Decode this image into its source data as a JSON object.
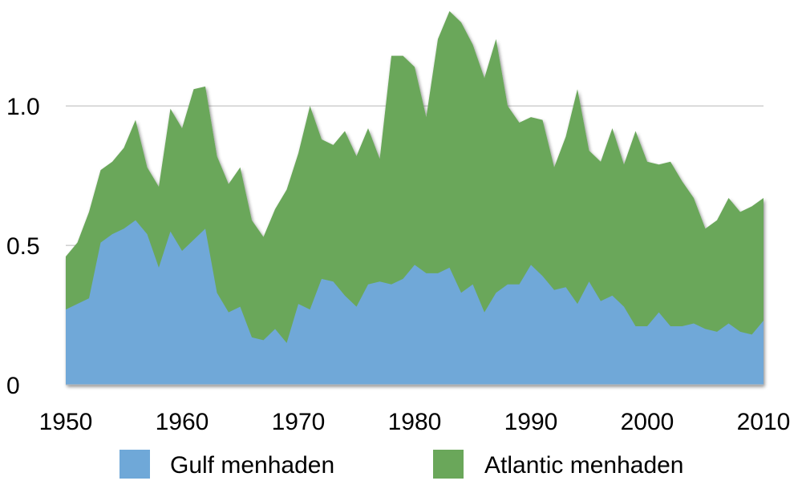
{
  "chart_data": {
    "type": "area",
    "stacked": true,
    "title": "",
    "xlabel": "",
    "ylabel": "",
    "xlim": [
      1950,
      2010
    ],
    "ylim": [
      0,
      1.38
    ],
    "x_ticks": [
      "1950",
      "1960",
      "1970",
      "1980",
      "1990",
      "2000",
      "2010"
    ],
    "y_ticks": [
      {
        "value": 0,
        "label": "0"
      },
      {
        "value": 0.5,
        "label": "0.5"
      },
      {
        "value": 1.0,
        "label": "1.0"
      }
    ],
    "grid": "horizontal",
    "legend": "bottom",
    "x": [
      1950,
      1951,
      1952,
      1953,
      1954,
      1955,
      1956,
      1957,
      1958,
      1959,
      1960,
      1961,
      1962,
      1963,
      1964,
      1965,
      1966,
      1967,
      1968,
      1969,
      1970,
      1971,
      1972,
      1973,
      1974,
      1975,
      1976,
      1977,
      1978,
      1979,
      1980,
      1981,
      1982,
      1983,
      1984,
      1985,
      1986,
      1987,
      1988,
      1989,
      1990,
      1991,
      1992,
      1993,
      1994,
      1995,
      1996,
      1997,
      1998,
      1999,
      2000,
      2001,
      2002,
      2003,
      2004,
      2005,
      2006,
      2007,
      2008,
      2009,
      2010
    ],
    "series": [
      {
        "name": "Gulf menhaden",
        "color": "#6fa8d8",
        "values": [
          0.27,
          0.29,
          0.31,
          0.51,
          0.54,
          0.56,
          0.59,
          0.54,
          0.42,
          0.55,
          0.48,
          0.52,
          0.56,
          0.33,
          0.26,
          0.28,
          0.17,
          0.16,
          0.2,
          0.15,
          0.29,
          0.27,
          0.38,
          0.37,
          0.32,
          0.28,
          0.36,
          0.37,
          0.36,
          0.38,
          0.43,
          0.4,
          0.4,
          0.42,
          0.33,
          0.36,
          0.26,
          0.33,
          0.36,
          0.36,
          0.43,
          0.39,
          0.34,
          0.35,
          0.29,
          0.37,
          0.3,
          0.32,
          0.28,
          0.21,
          0.21,
          0.26,
          0.21,
          0.21,
          0.22,
          0.2,
          0.19,
          0.22,
          0.19,
          0.18,
          0.23
        ]
      },
      {
        "name": "Atlantic menhaden",
        "color": "#6aa75a",
        "values": [
          0.19,
          0.22,
          0.31,
          0.26,
          0.26,
          0.29,
          0.36,
          0.24,
          0.29,
          0.44,
          0.44,
          0.54,
          0.51,
          0.49,
          0.46,
          0.5,
          0.42,
          0.37,
          0.43,
          0.55,
          0.54,
          0.73,
          0.5,
          0.49,
          0.59,
          0.54,
          0.56,
          0.44,
          0.82,
          0.8,
          0.71,
          0.56,
          0.84,
          0.92,
          0.97,
          0.86,
          0.84,
          0.91,
          0.64,
          0.58,
          0.53,
          0.56,
          0.44,
          0.54,
          0.77,
          0.47,
          0.5,
          0.6,
          0.51,
          0.7,
          0.59,
          0.53,
          0.59,
          0.52,
          0.45,
          0.36,
          0.4,
          0.45,
          0.43,
          0.46,
          0.44
        ]
      }
    ]
  }
}
